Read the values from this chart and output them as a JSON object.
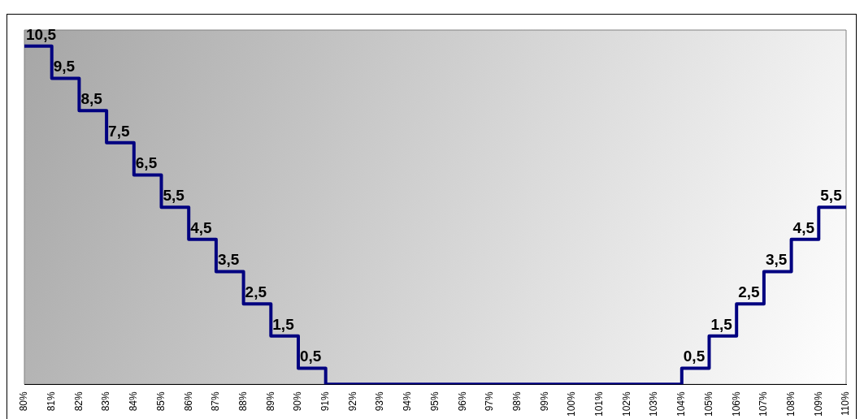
{
  "chart_data": {
    "type": "step",
    "categories": [
      "80%",
      "81%",
      "82%",
      "83%",
      "84%",
      "85%",
      "86%",
      "87%",
      "88%",
      "89%",
      "90%",
      "91%",
      "92%",
      "93%",
      "94%",
      "95%",
      "96%",
      "97%",
      "98%",
      "99%",
      "100%",
      "101%",
      "102%",
      "103%",
      "104%",
      "105%",
      "106%",
      "107%",
      "108%",
      "109%",
      "110%"
    ],
    "values": [
      10.5,
      9.5,
      8.5,
      7.5,
      6.5,
      5.5,
      4.5,
      3.5,
      2.5,
      1.5,
      0.5,
      0,
      0,
      0,
      0,
      0,
      0,
      0,
      0,
      0,
      0,
      0,
      0,
      0,
      0.5,
      1.5,
      2.5,
      3.5,
      4.5,
      5.5,
      5.5
    ],
    "value_labels": [
      "10,5",
      "9,5",
      "8,5",
      "7,5",
      "6,5",
      "5,5",
      "4,5",
      "3,5",
      "2,5",
      "1,5",
      "0,5",
      null,
      null,
      null,
      null,
      null,
      null,
      null,
      null,
      null,
      null,
      null,
      null,
      null,
      "0,5",
      "1,5",
      "2,5",
      "3,5",
      "4,5",
      "5,5",
      null
    ],
    "color": "#000080",
    "ylim": [
      0,
      11
    ],
    "tick_labels": "x",
    "grid": false,
    "legend": false
  }
}
